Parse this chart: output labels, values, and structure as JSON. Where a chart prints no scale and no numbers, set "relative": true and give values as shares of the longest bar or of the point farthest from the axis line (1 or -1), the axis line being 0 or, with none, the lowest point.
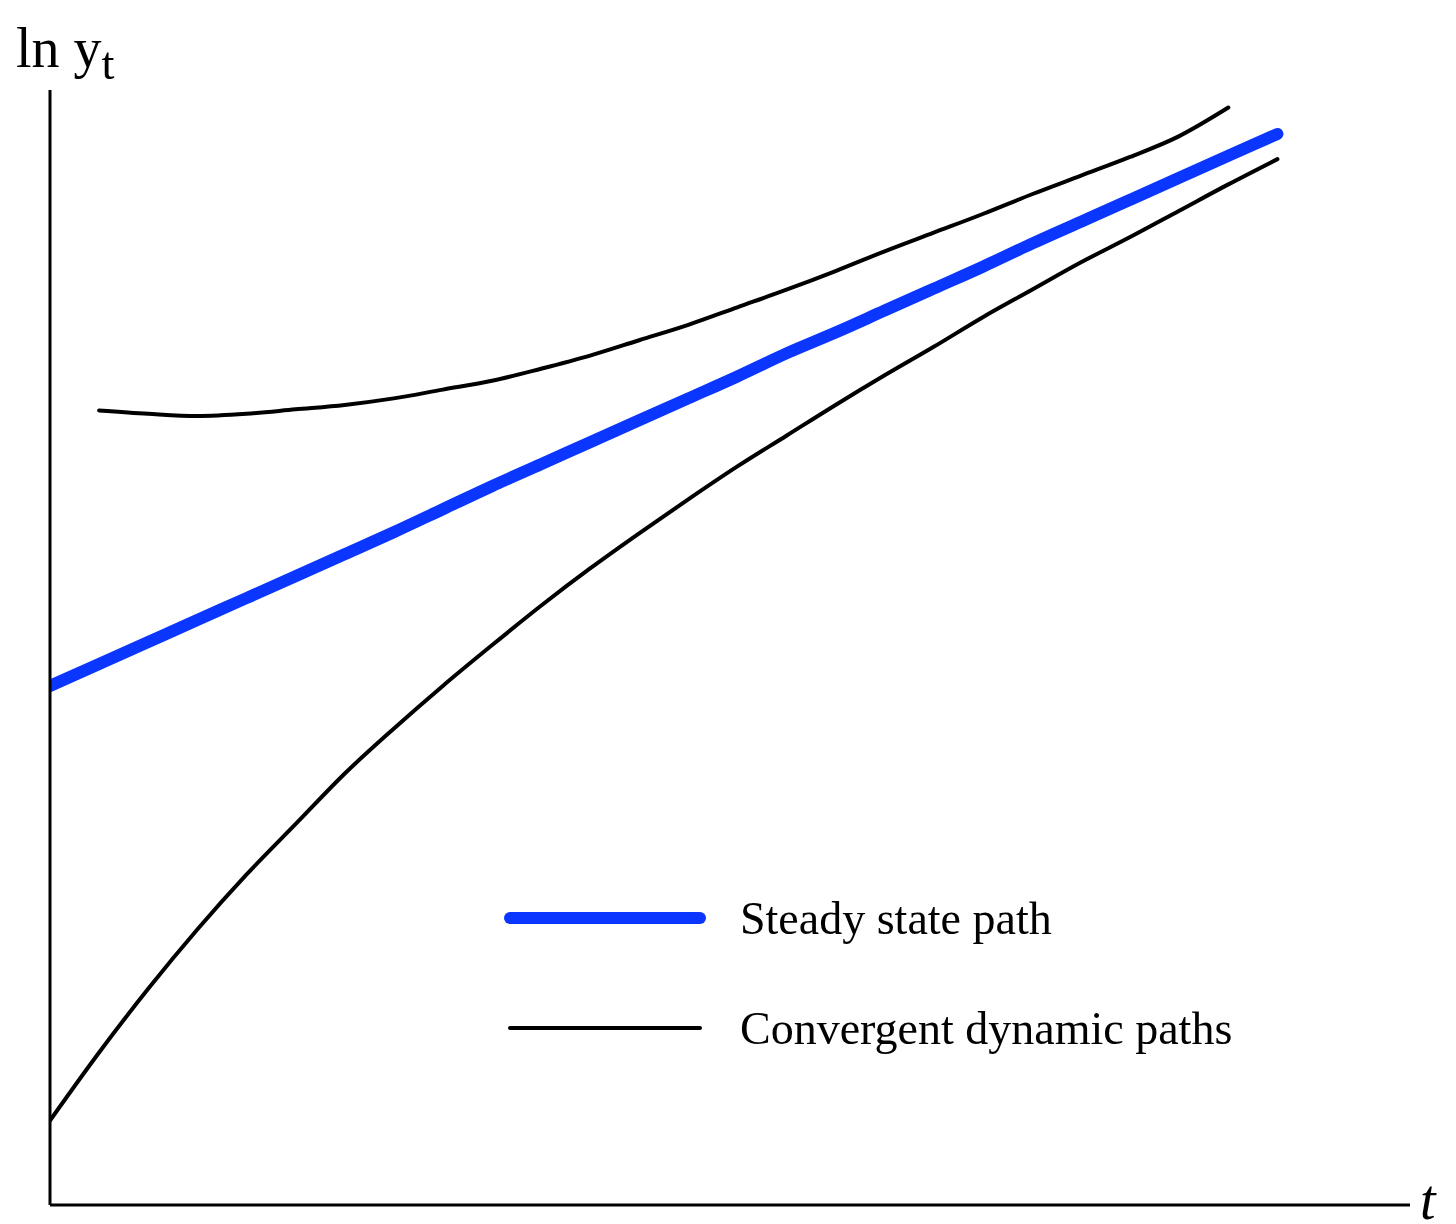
{
  "chart_data": {
    "type": "line",
    "relative": true,
    "xlabel": "t",
    "ylabel": "ln y$_{t}$",
    "legend": "bottom right",
    "grid": false,
    "categories": [
      null,
      null,
      null,
      null,
      null,
      null,
      null,
      null,
      null,
      null,
      null,
      null,
      null,
      null,
      null,
      null,
      null,
      null,
      null,
      null,
      null,
      null,
      null,
      null,
      null,
      null,
      null,
      null
    ],
    "series": [
      {
        "name": "Steady state path",
        "color": "#0a36ff",
        "values": [
          0.473,
          0.493,
          0.513,
          0.533,
          0.553,
          0.573,
          0.593,
          0.613,
          0.634,
          0.655,
          0.675,
          0.695,
          0.715,
          0.735,
          0.755,
          0.776,
          0.795,
          0.815,
          0.835,
          0.855,
          0.876,
          0.896,
          0.916,
          0.936,
          0.956,
          0.976,
          null,
          null
        ]
      },
      {
        "name": "Convergent dynamic paths",
        "color": "#000000",
        "values": [
          null,
          0.724,
          0.721,
          0.719,
          0.721,
          0.725,
          0.729,
          0.735,
          0.743,
          0.751,
          0.762,
          0.774,
          0.788,
          0.802,
          0.818,
          0.834,
          0.851,
          0.869,
          0.886,
          0.903,
          0.921,
          0.938,
          0.955,
          0.974,
          1.0,
          null,
          null,
          null
        ]
      },
      {
        "color": "#000000",
        "values": [
          0.077,
          0.139,
          0.197,
          0.251,
          0.301,
          0.347,
          0.393,
          0.434,
          0.473,
          0.51,
          0.546,
          0.58,
          0.612,
          0.643,
          0.673,
          0.701,
          0.729,
          0.756,
          0.782,
          0.809,
          0.834,
          0.859,
          0.882,
          0.906,
          0.93,
          0.953,
          null,
          null
        ]
      }
    ]
  }
}
